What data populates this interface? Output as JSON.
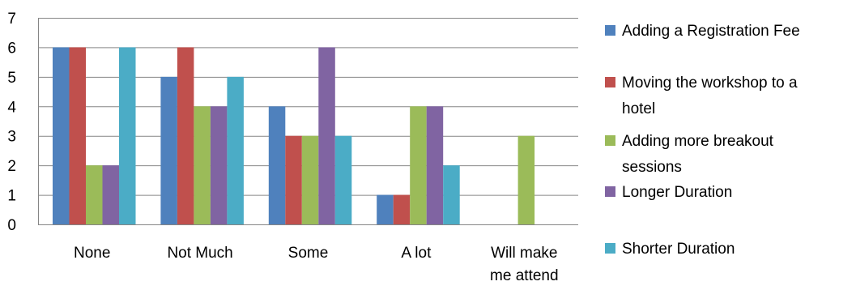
{
  "chart_data": {
    "type": "bar",
    "categories": [
      "None",
      "Not Much",
      "Some",
      "A lot",
      "Will make me attend"
    ],
    "category_lines": [
      [
        "None"
      ],
      [
        "Not Much"
      ],
      [
        "Some"
      ],
      [
        "A lot"
      ],
      [
        "Will make",
        "me attend"
      ]
    ],
    "series": [
      {
        "name": "Adding a Registration Fee",
        "color": "#4F81BD",
        "values": [
          6,
          5,
          4,
          1,
          0
        ],
        "legend_lines": [
          "Adding a Registration Fee"
        ]
      },
      {
        "name": "Moving the workshop to a hotel",
        "color": "#C0504D",
        "values": [
          6,
          6,
          3,
          1,
          0
        ],
        "legend_lines": [
          "Moving the workshop to a",
          "hotel"
        ]
      },
      {
        "name": "Adding more breakout sessions",
        "color": "#9BBB59",
        "values": [
          2,
          4,
          3,
          4,
          3
        ],
        "legend_lines": [
          "Adding more breakout",
          "sessions"
        ]
      },
      {
        "name": "Longer Duration",
        "color": "#8064A2",
        "values": [
          2,
          4,
          6,
          4,
          0
        ],
        "legend_lines": [
          "Longer Duration"
        ]
      },
      {
        "name": "Shorter Duration",
        "color": "#4BACC6",
        "values": [
          6,
          5,
          3,
          2,
          0
        ],
        "legend_lines": [
          "Shorter Duration"
        ]
      }
    ],
    "ylim": [
      0,
      7
    ],
    "yticks": [
      0,
      1,
      2,
      3,
      4,
      5,
      6,
      7
    ],
    "grid": true,
    "legend_position": "right",
    "xlabel": "",
    "ylabel": ""
  }
}
